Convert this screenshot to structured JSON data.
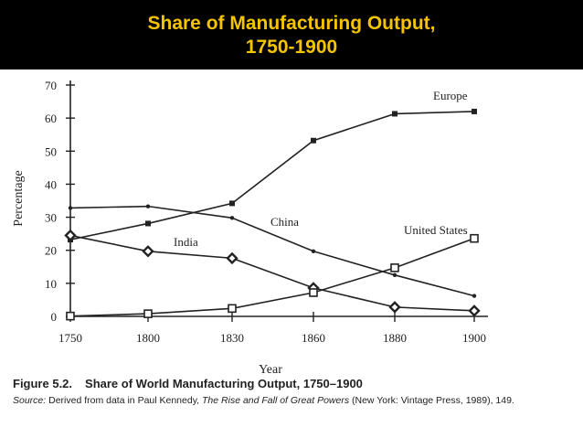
{
  "slide": {
    "title_line1": "Share of Manufacturing Output,",
    "title_line2": "1750-1900"
  },
  "colors": {
    "title_band": "#000000",
    "title_text": "#f5c400",
    "ink": "#222222"
  },
  "chart_data": {
    "type": "line",
    "xlabel": "Year",
    "ylabel": "Percentage",
    "x": [
      1750,
      1800,
      1830,
      1860,
      1880,
      1900
    ],
    "x_ticks": [
      "1750",
      "1800",
      "1830",
      "1860",
      "1880",
      "1900"
    ],
    "y_ticks": [
      "0",
      "10",
      "20",
      "30",
      "40",
      "50",
      "60",
      "70"
    ],
    "ylim": [
      0,
      70
    ],
    "grid": false,
    "legend": "labels placed on the lines",
    "series": [
      {
        "name": "Europe",
        "marker": "square",
        "values": [
          23.2,
          28.1,
          34.2,
          53.2,
          61.3,
          62.0
        ]
      },
      {
        "name": "China",
        "marker": "dot",
        "values": [
          32.8,
          33.3,
          29.8,
          19.7,
          12.5,
          6.2
        ]
      },
      {
        "name": "India",
        "marker": "diamond",
        "values": [
          24.5,
          19.7,
          17.6,
          8.6,
          2.8,
          1.7
        ]
      },
      {
        "name": "United States",
        "marker": "open-square",
        "values": [
          0.1,
          0.8,
          2.4,
          7.2,
          14.7,
          23.6
        ]
      }
    ]
  },
  "caption": {
    "figure_label": "Figure 5.2.",
    "figure_title": "Share of World Manufacturing Output, 1750–1900",
    "source_label": "Source:",
    "source_text_pre": "Derived from data in Paul Kennedy,",
    "source_book": "The Rise and Fall of Great Powers",
    "source_text_post": "(New York: Vintage Press, 1989), 149."
  }
}
